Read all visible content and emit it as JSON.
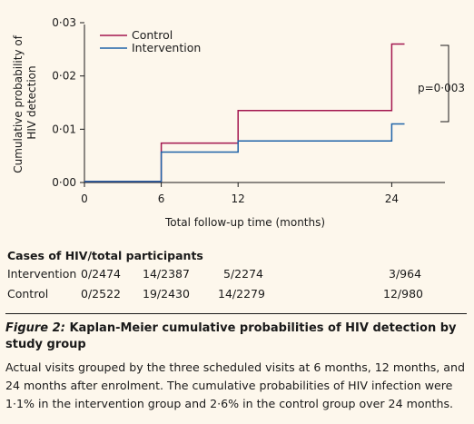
{
  "chart_data": {
    "type": "line",
    "step": true,
    "ylabel": "Cumulative probability of HIV detection",
    "xlabel": "Total follow-up time (months)",
    "x_ticks": [
      0,
      6,
      12,
      24
    ],
    "y_ticks": [
      "0·00",
      "0·01",
      "0·02",
      "0·03"
    ],
    "xlim": [
      0,
      25
    ],
    "ylim": [
      0,
      0.03
    ],
    "legend_position": "top-left",
    "series": [
      {
        "name": "Control",
        "color": "#a3174f",
        "x": [
          0,
          6,
          12,
          24,
          25
        ],
        "y": [
          0.0002,
          0.0074,
          0.0135,
          0.026,
          0.026
        ]
      },
      {
        "name": "Intervention",
        "color": "#1f63a8",
        "x": [
          0,
          6,
          12,
          24,
          25
        ],
        "y": [
          0.0002,
          0.0057,
          0.0078,
          0.011,
          0.011
        ]
      }
    ],
    "annotation": "p=0·003"
  },
  "table": {
    "title": "Cases of HIV/total participants",
    "rows": [
      {
        "label": "Intervention",
        "values": [
          "0/2474",
          "14/2387",
          "5/2274",
          "3/964"
        ]
      },
      {
        "label": "Control",
        "values": [
          "0/2522",
          "19/2430",
          "14/2279",
          "12/980"
        ]
      }
    ]
  },
  "caption": {
    "figure_label": "Figure 2:",
    "title": "Kaplan-Meier cumulative probabilities of HIV detection by study group",
    "body": "Actual visits grouped by the three scheduled visits at 6 months, 12 months, and 24 months after enrolment. The cumulative probabilities of HIV infection were 1·1% in the intervention group and 2·6% in the control group over 24 months."
  }
}
